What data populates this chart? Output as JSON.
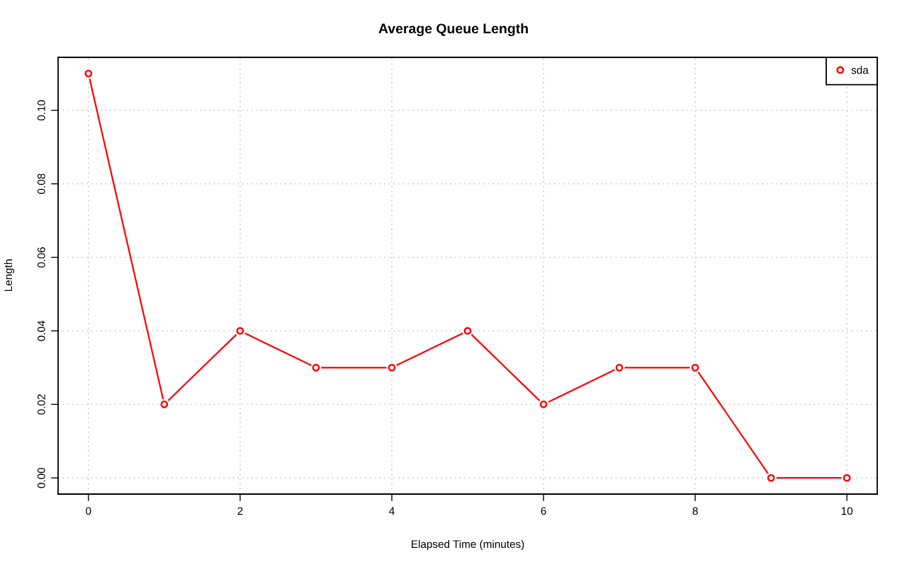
{
  "chart_data": {
    "type": "line",
    "title": "Average Queue Length",
    "xlabel": "Elapsed Time (minutes)",
    "ylabel": "Length",
    "x": [
      0,
      1,
      2,
      3,
      4,
      5,
      6,
      7,
      8,
      9,
      10
    ],
    "series": [
      {
        "name": "sda",
        "color": "#ff0000",
        "values": [
          0.11,
          0.02,
          0.04,
          0.03,
          0.03,
          0.04,
          0.02,
          0.03,
          0.03,
          0.0,
          0.0
        ]
      }
    ],
    "xlim": [
      -0.4,
      10.4
    ],
    "xticks": [
      0,
      2,
      4,
      6,
      8,
      10
    ],
    "ylim": [
      -0.0044,
      0.1144
    ],
    "yticks": [
      {
        "value": 0,
        "label": "0.00"
      },
      {
        "value": 0.02,
        "label": "0.02"
      },
      {
        "value": 0.04,
        "label": "0.04"
      },
      {
        "value": 0.06,
        "label": "0.06"
      },
      {
        "value": 0.08,
        "label": "0.08"
      },
      {
        "value": 0.1,
        "label": "0.10"
      }
    ],
    "grid": true,
    "legend": "top right",
    "marker": "circle",
    "line_style": "solid"
  }
}
